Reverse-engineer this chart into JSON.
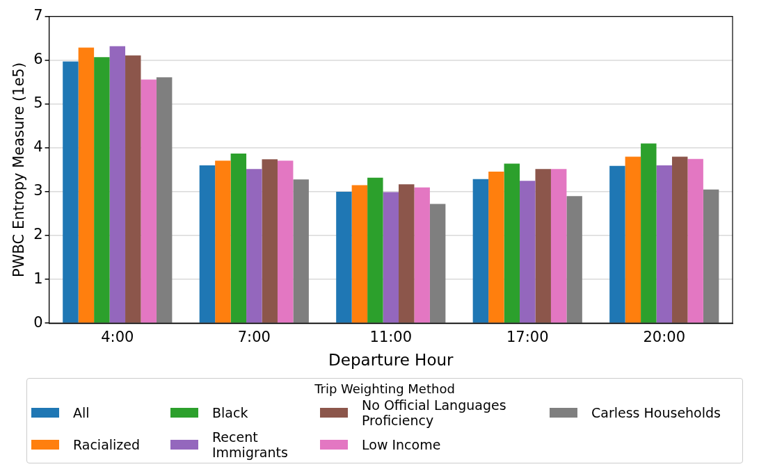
{
  "chart_data": {
    "type": "bar",
    "xlabel": "Departure Hour",
    "ylabel": "PWBC Entropy Measure (1e5)",
    "legend_title": "Trip Weighting Method",
    "categories": [
      "4:00",
      "7:00",
      "11:00",
      "17:00",
      "20:00"
    ],
    "series": [
      {
        "name": "All",
        "color": "#1f77b4",
        "values": [
          5.97,
          3.6,
          3.0,
          3.29,
          3.59
        ]
      },
      {
        "name": "Racialized",
        "color": "#ff7f0e",
        "values": [
          6.29,
          3.71,
          3.15,
          3.46,
          3.8
        ]
      },
      {
        "name": "Black",
        "color": "#2ca02c",
        "values": [
          6.07,
          3.87,
          3.32,
          3.64,
          4.1
        ]
      },
      {
        "name": "Recent Immigrants",
        "color": "#9467bd",
        "values": [
          6.32,
          3.52,
          2.99,
          3.25,
          3.6
        ]
      },
      {
        "name": "No Official Languages Proficiency",
        "color": "#8c564b",
        "values": [
          6.11,
          3.74,
          3.17,
          3.52,
          3.8
        ]
      },
      {
        "name": "Low Income",
        "color": "#e377c2",
        "values": [
          5.56,
          3.71,
          3.1,
          3.52,
          3.75
        ]
      },
      {
        "name": "Carless Households",
        "color": "#7f7f7f",
        "values": [
          5.61,
          3.28,
          2.72,
          2.9,
          3.05
        ]
      }
    ],
    "ylim": [
      0,
      7
    ],
    "yticks": [
      0,
      1,
      2,
      3,
      4,
      5,
      6,
      7
    ],
    "grid": "y",
    "legend": "bottom"
  }
}
